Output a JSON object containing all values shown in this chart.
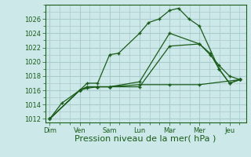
{
  "background_color": "#cce8e8",
  "grid_color": "#aacccc",
  "line_color": "#1a5c1a",
  "marker_color": "#1a5c1a",
  "xlabel": "Pression niveau de la mer( hPa )",
  "xlabel_fontsize": 8,
  "tick_labels": [
    "Dim",
    "Ven",
    "Sam",
    "Lun",
    "Mar",
    "Mer",
    "Jeu"
  ],
  "tick_positions": [
    0,
    1,
    2,
    3,
    4,
    5,
    6
  ],
  "xlim": [
    -0.15,
    6.55
  ],
  "ylim": [
    1011.5,
    1028.0
  ],
  "yticks": [
    1012,
    1014,
    1016,
    1018,
    1020,
    1022,
    1024,
    1026
  ],
  "series": [
    {
      "x": [
        0.0,
        0.4,
        1.0,
        1.25,
        1.6,
        2.0,
        2.3,
        3.0,
        3.3,
        3.65,
        4.0,
        4.3,
        4.65,
        5.0,
        5.65,
        6.0,
        6.35
      ],
      "y": [
        1012.0,
        1014.2,
        1016.0,
        1017.0,
        1017.0,
        1021.0,
        1021.2,
        1024.0,
        1025.5,
        1026.0,
        1027.2,
        1027.5,
        1026.0,
        1025.0,
        1019.0,
        1017.0,
        1017.5
      ]
    },
    {
      "x": [
        0.0,
        1.0,
        1.25,
        1.6,
        2.0,
        3.0,
        4.0,
        5.0,
        5.35,
        5.65,
        6.0,
        6.35
      ],
      "y": [
        1012.0,
        1016.0,
        1016.5,
        1016.5,
        1016.5,
        1017.2,
        1024.0,
        1022.5,
        1021.2,
        1019.0,
        1017.0,
        1017.5
      ]
    },
    {
      "x": [
        0.0,
        1.0,
        1.25,
        1.6,
        2.0,
        3.0,
        4.0,
        5.0,
        5.35,
        5.65,
        6.0,
        6.35
      ],
      "y": [
        1012.0,
        1016.0,
        1016.5,
        1016.5,
        1016.5,
        1016.5,
        1022.2,
        1022.5,
        1021.0,
        1019.5,
        1018.0,
        1017.5
      ]
    },
    {
      "x": [
        0.0,
        1.0,
        1.25,
        1.6,
        2.0,
        3.0,
        4.0,
        5.0,
        6.35
      ],
      "y": [
        1012.0,
        1016.0,
        1016.3,
        1016.5,
        1016.5,
        1016.8,
        1016.8,
        1016.8,
        1017.5
      ]
    }
  ]
}
